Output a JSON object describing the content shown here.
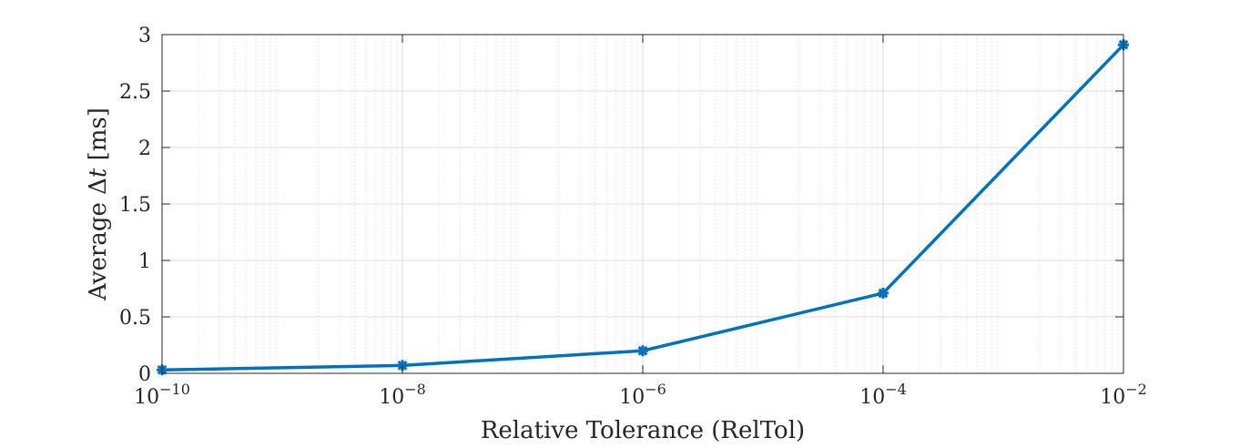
{
  "chart_data": {
    "type": "line",
    "title": "",
    "xlabel": "Relative Tolerance (RelTol)",
    "ylabel": {
      "prefix": "Average ",
      "symbol": "Δ",
      "variable": "t",
      "unit": " [ms]"
    },
    "x_scale": "log",
    "xlim": [
      1e-10,
      0.01
    ],
    "ylim": [
      0,
      3
    ],
    "grid": true,
    "minor_grid": true,
    "x_ticks": [
      {
        "value": 1e-10,
        "base": "10",
        "exp": "−10"
      },
      {
        "value": 1e-08,
        "base": "10",
        "exp": "−8"
      },
      {
        "value": 1e-06,
        "base": "10",
        "exp": "−6"
      },
      {
        "value": 0.0001,
        "base": "10",
        "exp": "−4"
      },
      {
        "value": 0.01,
        "base": "10",
        "exp": "−2"
      }
    ],
    "y_ticks": [
      {
        "value": 0,
        "label": "0"
      },
      {
        "value": 0.5,
        "label": "0.5"
      },
      {
        "value": 1,
        "label": "1"
      },
      {
        "value": 1.5,
        "label": "1.5"
      },
      {
        "value": 2,
        "label": "2"
      },
      {
        "value": 2.5,
        "label": "2.5"
      },
      {
        "value": 3,
        "label": "3"
      }
    ],
    "series": [
      {
        "color": "#0072BD",
        "marker": "asterisk",
        "x": [
          1e-10,
          1e-08,
          1e-06,
          0.0001,
          0.01
        ],
        "y": [
          0.03,
          0.07,
          0.2,
          0.71,
          2.91
        ]
      }
    ]
  }
}
